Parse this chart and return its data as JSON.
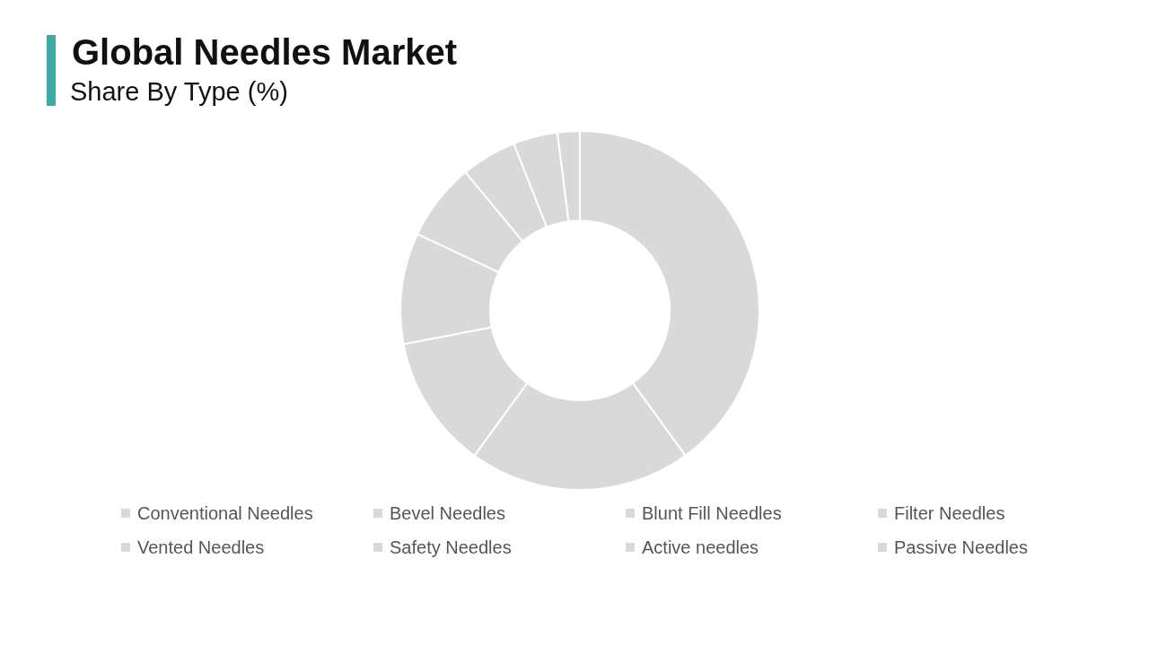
{
  "chart_data": {
    "type": "donut",
    "title": "Global Needles Market",
    "subtitle": "Share By Type (%)",
    "categories": [
      "Conventional Needles",
      "Bevel Needles",
      "Blunt Fill Needles",
      "Filter Needles",
      "Vented Needles",
      "Safety Needles",
      "Active needles",
      "Passive Needles"
    ],
    "values": [
      40,
      20,
      12,
      10,
      7,
      5,
      4,
      2
    ],
    "colors": [
      "#d9d9d9",
      "#d9d9d9",
      "#d9d9d9",
      "#d9d9d9",
      "#d9d9d9",
      "#d9d9d9",
      "#d9d9d9",
      "#d9d9d9"
    ],
    "legend": "bottom"
  }
}
